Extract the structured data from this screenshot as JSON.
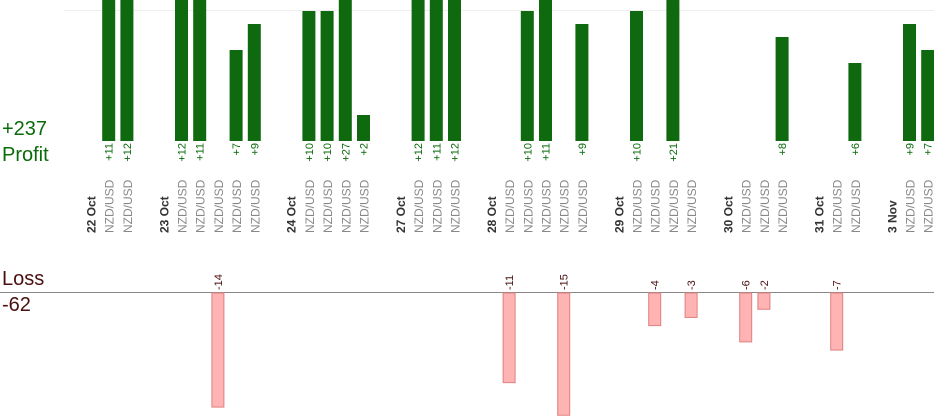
{
  "summary": {
    "profit_total": "+237",
    "profit_label": "Profit",
    "loss_label": "Loss",
    "loss_total": "-62"
  },
  "colors": {
    "profit_bar": "#0f6a0f",
    "profit_text": "#0a6b0a",
    "loss_bar_fill": "#ffb3b3",
    "loss_bar_stroke": "#e08080",
    "loss_text": "#4a0f0f",
    "date_text": "#333333",
    "pair_text": "#888888",
    "baseline": "#888888"
  },
  "chart_data": {
    "type": "bar",
    "title": "",
    "xlabel": "",
    "ylabel": "",
    "date_labels": [
      "22 Oct",
      "23 Oct",
      "24 Oct",
      "27 Oct",
      "28 Oct",
      "29 Oct",
      "30 Oct",
      "31 Oct",
      "3 Nov"
    ],
    "columns": [
      {
        "date": "22 Oct"
      },
      {
        "label": "NZD/USD",
        "value": 11
      },
      {
        "label": "NZD/USD",
        "value": 12
      },
      {
        "spacer": true
      },
      {
        "date": "23 Oct"
      },
      {
        "label": "NZD/USD",
        "value": 12
      },
      {
        "label": "NZD/USD",
        "value": 11
      },
      {
        "label": "NZD/USD",
        "value": -14
      },
      {
        "label": "NZD/USD",
        "value": 7
      },
      {
        "label": "NZD/USD",
        "value": 9
      },
      {
        "spacer": true
      },
      {
        "date": "24 Oct"
      },
      {
        "label": "NZD/USD",
        "value": 10
      },
      {
        "label": "NZD/USD",
        "value": 10
      },
      {
        "label": "NZD/USD",
        "value": 27
      },
      {
        "label": "NZD/USD",
        "value": 2
      },
      {
        "spacer": true
      },
      {
        "date": "27 Oct"
      },
      {
        "label": "NZD/USD",
        "value": 12
      },
      {
        "label": "NZD/USD",
        "value": 11
      },
      {
        "label": "NZD/USD",
        "value": 12
      },
      {
        "spacer": true
      },
      {
        "date": "28 Oct"
      },
      {
        "label": "NZD/USD",
        "value": -11
      },
      {
        "label": "NZD/USD",
        "value": 10
      },
      {
        "label": "NZD/USD",
        "value": 11
      },
      {
        "label": "NZD/USD",
        "value": -15
      },
      {
        "label": "NZD/USD",
        "value": 9
      },
      {
        "spacer": true
      },
      {
        "date": "29 Oct"
      },
      {
        "label": "NZD/USD",
        "value": 10
      },
      {
        "label": "NZD/USD",
        "value": -4
      },
      {
        "label": "NZD/USD",
        "value": 21
      },
      {
        "label": "NZD/USD",
        "value": -3
      },
      {
        "spacer": true
      },
      {
        "date": "30 Oct"
      },
      {
        "label": "NZD/USD",
        "value": -6
      },
      {
        "label": "NZD/USD",
        "value": -2
      },
      {
        "label": "NZD/USD",
        "value": 8
      },
      {
        "spacer": true
      },
      {
        "date": "31 Oct"
      },
      {
        "label": "NZD/USD",
        "value": -7
      },
      {
        "label": "NZD/USD",
        "value": 6
      },
      {
        "spacer": true
      },
      {
        "date": "3 Nov"
      },
      {
        "label": "NZD/USD",
        "value": 9
      },
      {
        "label": "NZD/USD",
        "value": 7
      }
    ]
  }
}
